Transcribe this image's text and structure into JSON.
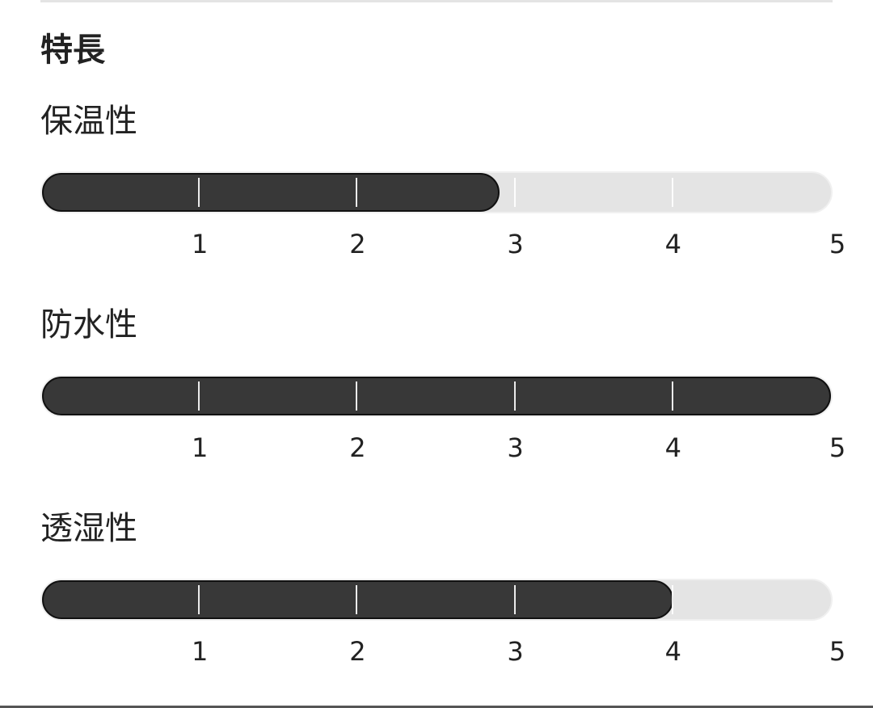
{
  "section_title": "特長",
  "scale": {
    "min": 0,
    "max": 5,
    "ticks": [
      "1",
      "2",
      "3",
      "4",
      "5"
    ]
  },
  "colors": {
    "fill": "#383838",
    "track": "#e4e4e4"
  },
  "features": [
    {
      "label": "保温性",
      "value": 2.9
    },
    {
      "label": "防水性",
      "value": 5
    },
    {
      "label": "透湿性",
      "value": 4
    }
  ]
}
